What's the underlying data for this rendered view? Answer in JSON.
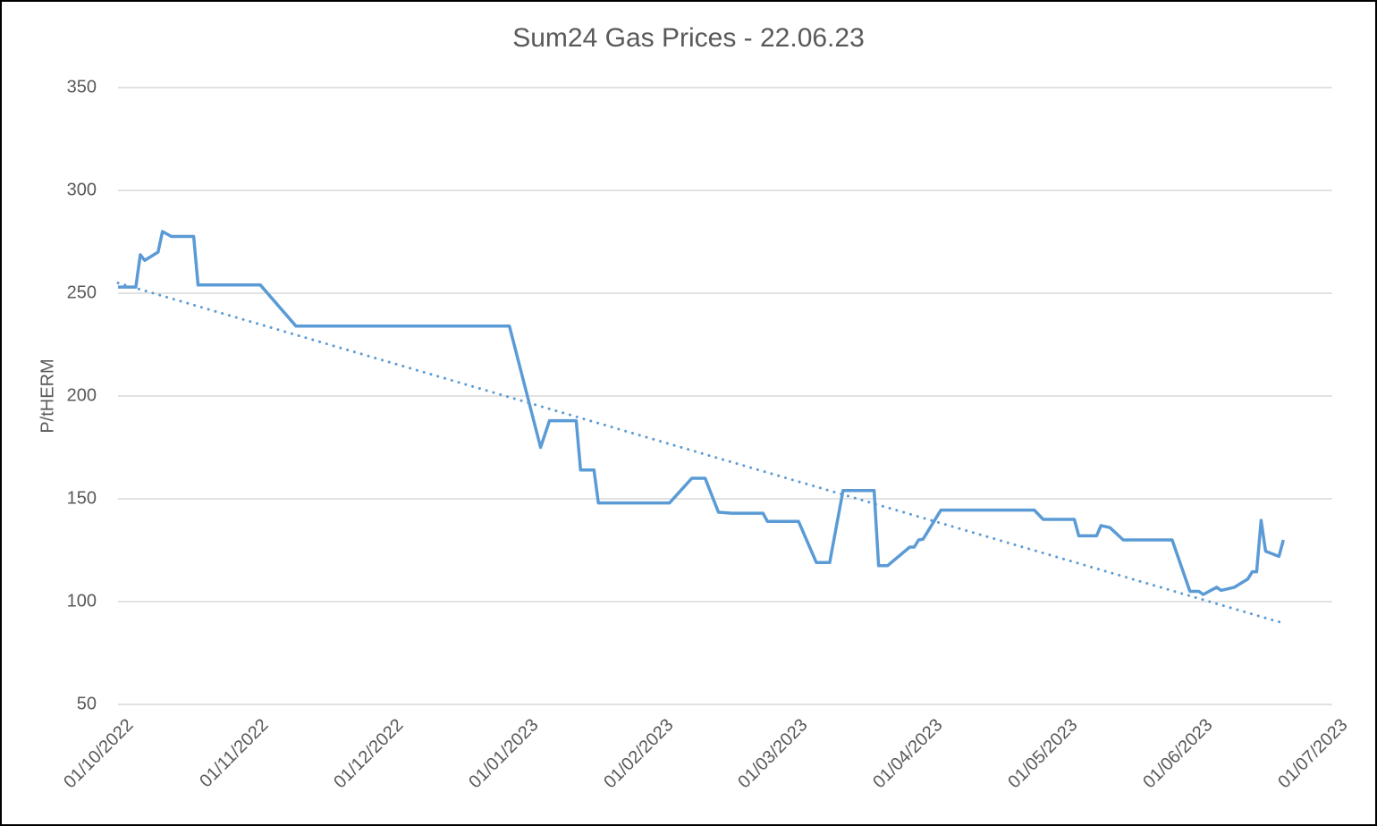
{
  "chart_data": {
    "type": "line",
    "title": "Sum24 Gas Prices - 22.06.23",
    "xlabel": "",
    "ylabel": "P/tHERM",
    "ylim": [
      50,
      350
    ],
    "yticks": [
      50,
      100,
      150,
      200,
      250,
      300,
      350
    ],
    "xlim": [
      "01/10/2022",
      "01/07/2023"
    ],
    "xticks": [
      "01/10/2022",
      "01/11/2022",
      "01/12/2022",
      "01/01/2023",
      "01/02/2023",
      "01/03/2023",
      "01/04/2023",
      "01/05/2023",
      "01/06/2023",
      "01/07/2023"
    ],
    "grid": "horizontal",
    "legend": "none",
    "colors": {
      "series": "#5b9bd5",
      "trend": "#5b9bd5",
      "grid": "#d9d9d9",
      "text": "#595959"
    },
    "series": [
      {
        "name": "Sum24 Gas Price",
        "style": "solid",
        "points": [
          {
            "day": 0,
            "value": 253
          },
          {
            "day": 4,
            "value": 253
          },
          {
            "day": 5,
            "value": 268.7
          },
          {
            "day": 6,
            "value": 266
          },
          {
            "day": 9,
            "value": 270
          },
          {
            "day": 10,
            "value": 280
          },
          {
            "day": 12,
            "value": 277.6
          },
          {
            "day": 17,
            "value": 277.6
          },
          {
            "day": 18,
            "value": 254
          },
          {
            "day": 32,
            "value": 254
          },
          {
            "day": 40,
            "value": 234
          },
          {
            "day": 88,
            "value": 234
          },
          {
            "day": 95,
            "value": 175
          },
          {
            "day": 97,
            "value": 188
          },
          {
            "day": 103,
            "value": 188
          },
          {
            "day": 104,
            "value": 164
          },
          {
            "day": 107,
            "value": 164
          },
          {
            "day": 108,
            "value": 148
          },
          {
            "day": 124,
            "value": 148
          },
          {
            "day": 129,
            "value": 160
          },
          {
            "day": 132,
            "value": 160
          },
          {
            "day": 135,
            "value": 143.5
          },
          {
            "day": 138,
            "value": 143
          },
          {
            "day": 145,
            "value": 143
          },
          {
            "day": 146,
            "value": 139
          },
          {
            "day": 153,
            "value": 139
          },
          {
            "day": 157,
            "value": 119
          },
          {
            "day": 160,
            "value": 119
          },
          {
            "day": 163,
            "value": 154
          },
          {
            "day": 170,
            "value": 154
          },
          {
            "day": 171,
            "value": 117.5
          },
          {
            "day": 173,
            "value": 117.5
          },
          {
            "day": 178,
            "value": 126.5
          },
          {
            "day": 179,
            "value": 126.5
          },
          {
            "day": 180,
            "value": 130
          },
          {
            "day": 181,
            "value": 130.4
          },
          {
            "day": 185,
            "value": 144.5
          },
          {
            "day": 206,
            "value": 144.5
          },
          {
            "day": 208,
            "value": 140
          },
          {
            "day": 215,
            "value": 140
          },
          {
            "day": 216,
            "value": 132
          },
          {
            "day": 220,
            "value": 132
          },
          {
            "day": 221,
            "value": 137
          },
          {
            "day": 223,
            "value": 136
          },
          {
            "day": 226,
            "value": 130
          },
          {
            "day": 237,
            "value": 130
          },
          {
            "day": 241,
            "value": 105
          },
          {
            "day": 243,
            "value": 105
          },
          {
            "day": 244,
            "value": 103.5
          },
          {
            "day": 247,
            "value": 107
          },
          {
            "day": 248,
            "value": 105.5
          },
          {
            "day": 251,
            "value": 107
          },
          {
            "day": 254,
            "value": 111
          },
          {
            "day": 255,
            "value": 114.5
          },
          {
            "day": 256,
            "value": 114.5
          },
          {
            "day": 257,
            "value": 139.5
          },
          {
            "day": 258,
            "value": 124.5
          },
          {
            "day": 261,
            "value": 122
          },
          {
            "day": 262,
            "value": 130
          }
        ]
      },
      {
        "name": "Linear trend",
        "style": "dotted",
        "points": [
          {
            "day": 0,
            "value": 255
          },
          {
            "day": 262,
            "value": 89.5
          }
        ]
      }
    ]
  }
}
